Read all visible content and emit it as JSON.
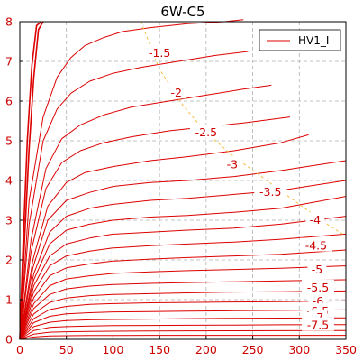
{
  "chart_data": {
    "type": "line",
    "title": "6W-C5",
    "xlabel": "",
    "ylabel": "",
    "xlim": [
      0,
      350
    ],
    "ylim": [
      0,
      8
    ],
    "x_ticks": [
      "0",
      "50",
      "100",
      "150",
      "200",
      "250",
      "300",
      "350"
    ],
    "y_ticks": [
      "0",
      "1",
      "2",
      "3",
      "4",
      "5",
      "6",
      "7",
      "8"
    ],
    "grid": true,
    "legend": {
      "placement": "top-right",
      "entries": [
        "HV1_I"
      ]
    },
    "colors": {
      "series": "#dd0000",
      "boundary": "#f0c040",
      "axis_text": "#cc0000",
      "grid": "#b0b0b0"
    },
    "contour_labels": [
      {
        "text": "-1.5",
        "x": 150,
        "y": 7.2
      },
      {
        "text": "-2",
        "x": 168,
        "y": 6.2
      },
      {
        "text": "-2.5",
        "x": 200,
        "y": 5.2
      },
      {
        "text": "-3",
        "x": 228,
        "y": 4.4
      },
      {
        "text": "-3.5",
        "x": 269,
        "y": 3.7
      },
      {
        "text": "-4",
        "x": 317,
        "y": 3.0
      },
      {
        "text": "-4.5",
        "x": 318,
        "y": 2.35
      },
      {
        "text": "-5",
        "x": 319,
        "y": 1.75
      },
      {
        "text": "-5.5",
        "x": 320,
        "y": 1.3
      },
      {
        "text": "-6",
        "x": 320,
        "y": 0.95
      },
      {
        "text": "-6.5",
        "x": 320,
        "y": 0.7
      },
      {
        "text": "-7",
        "x": 320,
        "y": 0.55
      },
      {
        "text": "-7.5",
        "x": 320,
        "y": 0.35
      }
    ],
    "series": [
      {
        "name": "HV1_I",
        "x": [
          0,
          5,
          10,
          15,
          20,
          25
        ],
        "y": [
          0,
          2.5,
          4.8,
          6.6,
          7.8,
          8
        ]
      },
      {
        "x": [
          0,
          4,
          8,
          13,
          18,
          23
        ],
        "y": [
          0,
          2.7,
          5.0,
          6.9,
          7.9,
          8
        ]
      },
      {
        "x": [
          0,
          10,
          25,
          40,
          55,
          70,
          90,
          110,
          140,
          180,
          220,
          240
        ],
        "y": [
          0,
          3.5,
          5.6,
          6.6,
          7.1,
          7.4,
          7.6,
          7.75,
          7.85,
          7.95,
          8,
          8.05
        ]
      },
      {
        "x": [
          0,
          10,
          25,
          40,
          55,
          75,
          100,
          130,
          170,
          210,
          245
        ],
        "y": [
          0,
          2.9,
          5.0,
          5.8,
          6.2,
          6.5,
          6.7,
          6.85,
          7.0,
          7.15,
          7.25
        ]
      },
      {
        "x": [
          0,
          12,
          28,
          45,
          65,
          90,
          120,
          160,
          200,
          240,
          270
        ],
        "y": [
          0,
          2.5,
          4.3,
          5.05,
          5.4,
          5.65,
          5.85,
          6.0,
          6.15,
          6.3,
          6.4
        ]
      },
      {
        "x": [
          0,
          12,
          28,
          45,
          65,
          90,
          120,
          160,
          200,
          240,
          290
        ],
        "y": [
          0,
          2.2,
          3.8,
          4.45,
          4.75,
          4.95,
          5.1,
          5.25,
          5.35,
          5.45,
          5.6
        ]
      },
      {
        "x": [
          0,
          14,
          30,
          50,
          70,
          100,
          140,
          180,
          230,
          280,
          310
        ],
        "y": [
          0,
          2.0,
          3.35,
          3.95,
          4.2,
          4.35,
          4.5,
          4.6,
          4.75,
          4.95,
          5.15
        ]
      },
      {
        "x": [
          0,
          14,
          30,
          50,
          75,
          100,
          140,
          180,
          230,
          280,
          350
        ],
        "y": [
          0,
          1.8,
          3.0,
          3.5,
          3.7,
          3.85,
          3.95,
          4.0,
          4.1,
          4.25,
          4.5
        ]
      },
      {
        "x": [
          0,
          15,
          32,
          50,
          75,
          100,
          140,
          180,
          230,
          280,
          350
        ],
        "y": [
          0,
          1.65,
          2.7,
          3.1,
          3.3,
          3.4,
          3.5,
          3.55,
          3.65,
          3.75,
          4.0
        ]
      },
      {
        "x": [
          0,
          15,
          32,
          50,
          75,
          100,
          140,
          180,
          230,
          280,
          350
        ],
        "y": [
          0,
          1.5,
          2.4,
          2.75,
          2.9,
          3.0,
          3.08,
          3.12,
          3.2,
          3.3,
          3.6
        ]
      },
      {
        "x": [
          0,
          15,
          32,
          50,
          75,
          100,
          140,
          180,
          230,
          280,
          350
        ],
        "y": [
          0,
          1.35,
          2.1,
          2.4,
          2.55,
          2.65,
          2.7,
          2.75,
          2.8,
          2.9,
          3.1
        ]
      },
      {
        "x": [
          0,
          15,
          32,
          50,
          75,
          100,
          140,
          180,
          230,
          280,
          350
        ],
        "y": [
          0,
          1.2,
          1.85,
          2.1,
          2.22,
          2.3,
          2.36,
          2.4,
          2.45,
          2.52,
          2.65
        ]
      },
      {
        "x": [
          0,
          15,
          32,
          50,
          75,
          100,
          140,
          180,
          230,
          280,
          350
        ],
        "y": [
          0,
          1.05,
          1.6,
          1.8,
          1.9,
          1.97,
          2.02,
          2.06,
          2.1,
          2.14,
          2.25
        ]
      },
      {
        "x": [
          0,
          15,
          32,
          50,
          75,
          100,
          140,
          180,
          230,
          280,
          350
        ],
        "y": [
          0,
          0.9,
          1.35,
          1.52,
          1.6,
          1.66,
          1.7,
          1.73,
          1.76,
          1.79,
          1.85
        ]
      },
      {
        "x": [
          0,
          15,
          32,
          50,
          75,
          100,
          140,
          180,
          230,
          280,
          350
        ],
        "y": [
          0,
          0.78,
          1.13,
          1.27,
          1.34,
          1.38,
          1.41,
          1.43,
          1.45,
          1.47,
          1.5
        ]
      },
      {
        "x": [
          0,
          15,
          32,
          50,
          75,
          100,
          140,
          180,
          230,
          280,
          350
        ],
        "y": [
          0,
          0.64,
          0.93,
          1.04,
          1.1,
          1.13,
          1.15,
          1.17,
          1.19,
          1.2,
          1.22
        ]
      },
      {
        "x": [
          0,
          15,
          32,
          50,
          75,
          100,
          140,
          180,
          230,
          280,
          350
        ],
        "y": [
          0,
          0.52,
          0.75,
          0.83,
          0.88,
          0.9,
          0.92,
          0.93,
          0.94,
          0.95,
          0.97
        ]
      },
      {
        "x": [
          0,
          15,
          32,
          50,
          75,
          100,
          140,
          180,
          230,
          280,
          350
        ],
        "y": [
          0,
          0.42,
          0.58,
          0.64,
          0.67,
          0.69,
          0.7,
          0.71,
          0.72,
          0.73,
          0.74
        ]
      },
      {
        "x": [
          0,
          15,
          32,
          50,
          75,
          100,
          140,
          180,
          230,
          280,
          350
        ],
        "y": [
          0,
          0.32,
          0.43,
          0.47,
          0.49,
          0.5,
          0.51,
          0.52,
          0.53,
          0.535,
          0.54
        ]
      },
      {
        "x": [
          0,
          15,
          32,
          50,
          75,
          100,
          140,
          180,
          230,
          280,
          350
        ],
        "y": [
          0,
          0.22,
          0.3,
          0.32,
          0.335,
          0.345,
          0.35,
          0.355,
          0.36,
          0.365,
          0.37
        ]
      },
      {
        "x": [
          0,
          15,
          32,
          50,
          75,
          100,
          140,
          180,
          230,
          280,
          350
        ],
        "y": [
          0,
          0.13,
          0.18,
          0.19,
          0.2,
          0.205,
          0.21,
          0.213,
          0.216,
          0.218,
          0.22
        ]
      },
      {
        "x": [
          0,
          15,
          32,
          50,
          75,
          100,
          140,
          180,
          230,
          280,
          350
        ],
        "y": [
          0,
          0.06,
          0.085,
          0.09,
          0.095,
          0.097,
          0.099,
          0.1,
          0.1,
          0.1,
          0.1
        ]
      }
    ],
    "boundary": {
      "x": [
        130,
        150,
        175,
        200,
        230,
        265,
        300,
        330,
        350
      ],
      "y": [
        8,
        6.8,
        5.9,
        5.2,
        4.6,
        4.0,
        3.4,
        2.9,
        2.6
      ]
    }
  }
}
